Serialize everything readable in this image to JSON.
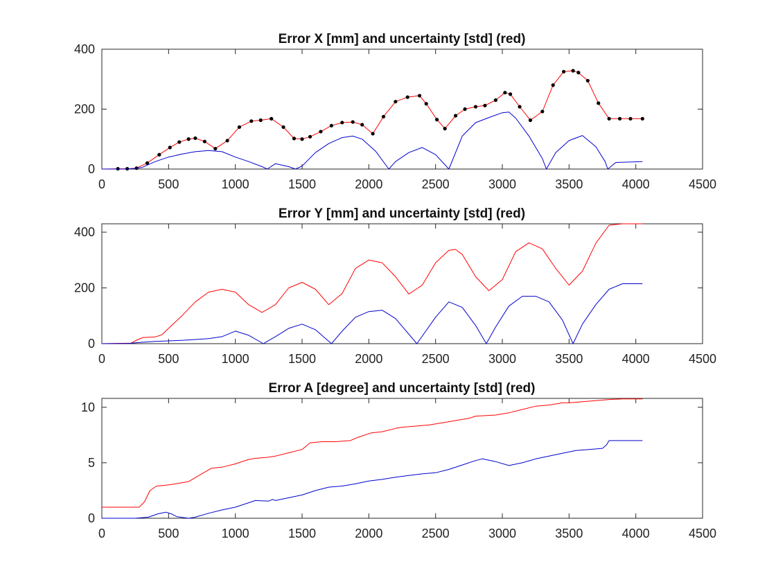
{
  "chart_data": [
    {
      "type": "line",
      "title": "Error X [mm] and uncertainty [std] (red)",
      "xlabel": "",
      "ylabel": "",
      "xlim": [
        0,
        4500
      ],
      "ylim": [
        0,
        400
      ],
      "xticks": [
        0,
        500,
        1000,
        1500,
        2000,
        2500,
        3000,
        3500,
        4000,
        4500
      ],
      "yticks": [
        0,
        200,
        400
      ],
      "grid": false,
      "legend": "none",
      "series": [
        {
          "color": "#ff0000",
          "marker": "dot",
          "marker_color": "#000000",
          "x": [
            0,
            120,
            190,
            260,
            340,
            430,
            510,
            580,
            650,
            700,
            770,
            850,
            940,
            1030,
            1120,
            1190,
            1270,
            1360,
            1440,
            1500,
            1560,
            1640,
            1720,
            1800,
            1880,
            1950,
            2030,
            2110,
            2200,
            2290,
            2380,
            2430,
            2510,
            2570,
            2650,
            2720,
            2800,
            2870,
            2950,
            3020,
            3060,
            3130,
            3210,
            3300,
            3380,
            3460,
            3530,
            3570,
            3640,
            3720,
            3800,
            3880,
            3960,
            4050
          ],
          "y": [
            0,
            1,
            1,
            3,
            20,
            48,
            72,
            90,
            100,
            103,
            92,
            68,
            95,
            140,
            160,
            163,
            168,
            140,
            102,
            100,
            108,
            125,
            145,
            155,
            157,
            148,
            118,
            175,
            225,
            240,
            245,
            218,
            165,
            135,
            178,
            200,
            208,
            212,
            230,
            255,
            250,
            208,
            163,
            192,
            280,
            325,
            328,
            322,
            295,
            220,
            168,
            168,
            168,
            168
          ],
          "show_markers": true
        },
        {
          "color": "#0000cc",
          "x": [
            0,
            200,
            300,
            400,
            500,
            600,
            700,
            800,
            900,
            1000,
            1100,
            1200,
            1240,
            1300,
            1400,
            1450,
            1500,
            1600,
            1700,
            1800,
            1880,
            1950,
            2050,
            2150,
            2200,
            2300,
            2400,
            2500,
            2600,
            2700,
            2800,
            2900,
            3000,
            3050,
            3100,
            3200,
            3300,
            3330,
            3400,
            3500,
            3600,
            3700,
            3770,
            3790,
            3850,
            4050
          ],
          "y": [
            0,
            0,
            5,
            25,
            40,
            50,
            58,
            62,
            58,
            40,
            25,
            8,
            0,
            18,
            8,
            0,
            10,
            55,
            85,
            105,
            110,
            100,
            60,
            0,
            25,
            55,
            72,
            48,
            0,
            110,
            155,
            172,
            188,
            190,
            170,
            110,
            35,
            0,
            55,
            95,
            112,
            75,
            25,
            0,
            22,
            25
          ]
        }
      ]
    },
    {
      "type": "line",
      "title": "Error Y [mm] and uncertainty [std] (red)",
      "xlabel": "",
      "ylabel": "",
      "xlim": [
        0,
        4500
      ],
      "ylim": [
        0,
        430
      ],
      "xticks": [
        0,
        500,
        1000,
        1500,
        2000,
        2500,
        3000,
        3500,
        4000,
        4500
      ],
      "yticks": [
        0,
        200,
        400
      ],
      "grid": false,
      "legend": "none",
      "series": [
        {
          "color": "#ff0000",
          "x": [
            0,
            220,
            270,
            310,
            400,
            450,
            500,
            600,
            700,
            800,
            900,
            1000,
            1100,
            1200,
            1300,
            1400,
            1500,
            1600,
            1700,
            1800,
            1900,
            2000,
            2100,
            2200,
            2300,
            2400,
            2500,
            2600,
            2650,
            2700,
            2800,
            2900,
            3000,
            3100,
            3200,
            3300,
            3400,
            3500,
            3600,
            3700,
            3800,
            3900,
            4050
          ],
          "y": [
            0,
            2,
            15,
            22,
            24,
            32,
            55,
            100,
            150,
            185,
            195,
            185,
            140,
            112,
            140,
            200,
            220,
            195,
            140,
            180,
            270,
            300,
            290,
            240,
            178,
            210,
            290,
            335,
            338,
            320,
            240,
            190,
            230,
            330,
            362,
            340,
            270,
            210,
            260,
            360,
            425,
            430,
            430
          ],
          "show_markers": false
        },
        {
          "color": "#0000cc",
          "x": [
            0,
            200,
            300,
            400,
            500,
            600,
            700,
            800,
            900,
            1000,
            1100,
            1210,
            1300,
            1400,
            1500,
            1600,
            1720,
            1800,
            1900,
            2000,
            2100,
            2200,
            2360,
            2500,
            2600,
            2700,
            2800,
            2880,
            2950,
            3050,
            3150,
            3250,
            3350,
            3450,
            3530,
            3600,
            3700,
            3800,
            3900,
            4050
          ],
          "y": [
            0,
            1,
            5,
            8,
            10,
            12,
            15,
            18,
            25,
            45,
            30,
            0,
            25,
            55,
            70,
            50,
            0,
            45,
            95,
            115,
            120,
            90,
            0,
            95,
            150,
            130,
            65,
            0,
            60,
            135,
            170,
            170,
            150,
            85,
            0,
            70,
            140,
            195,
            215,
            215
          ],
          "show_markers": false
        }
      ]
    },
    {
      "type": "line",
      "title": "Error A [degree] and uncertainty [std] (red)",
      "xlabel": "",
      "ylabel": "",
      "xlim": [
        0,
        4500
      ],
      "ylim": [
        0,
        10.8
      ],
      "xticks": [
        0,
        500,
        1000,
        1500,
        2000,
        2500,
        3000,
        3500,
        4000,
        4500
      ],
      "yticks": [
        0,
        5,
        10
      ],
      "grid": false,
      "legend": "none",
      "series": [
        {
          "color": "#ff0000",
          "x": [
            0,
            280,
            320,
            360,
            410,
            500,
            650,
            720,
            820,
            900,
            1000,
            1100,
            1150,
            1250,
            1300,
            1400,
            1500,
            1560,
            1650,
            1750,
            1860,
            1920,
            2020,
            2100,
            2200,
            2250,
            2350,
            2450,
            2550,
            2650,
            2750,
            2800,
            2950,
            3000,
            3050,
            3150,
            3250,
            3350,
            3450,
            3500,
            3600,
            3700,
            3800,
            3900,
            4050
          ],
          "y": [
            1,
            1,
            1.5,
            2.5,
            2.9,
            3.0,
            3.3,
            3.8,
            4.5,
            4.6,
            4.9,
            5.3,
            5.4,
            5.5,
            5.6,
            5.9,
            6.2,
            6.8,
            6.9,
            6.9,
            7.0,
            7.3,
            7.7,
            7.8,
            8.1,
            8.2,
            8.3,
            8.4,
            8.6,
            8.8,
            9.0,
            9.2,
            9.3,
            9.4,
            9.5,
            9.8,
            10.1,
            10.2,
            10.4,
            10.4,
            10.5,
            10.6,
            10.7,
            10.75,
            10.75
          ],
          "show_markers": false
        },
        {
          "color": "#0000cc",
          "x": [
            0,
            250,
            350,
            420,
            480,
            520,
            560,
            620,
            650,
            700,
            800,
            900,
            1000,
            1100,
            1150,
            1250,
            1280,
            1300,
            1400,
            1500,
            1600,
            1700,
            1800,
            1900,
            2000,
            2100,
            2200,
            2300,
            2400,
            2500,
            2600,
            2700,
            2800,
            2850,
            2950,
            3050,
            3150,
            3250,
            3350,
            3450,
            3550,
            3650,
            3750,
            3780,
            3800,
            4050
          ],
          "y": [
            0,
            0,
            0.1,
            0.4,
            0.55,
            0.4,
            0.15,
            0.05,
            0,
            0.1,
            0.45,
            0.75,
            1.0,
            1.4,
            1.6,
            1.55,
            1.7,
            1.6,
            1.85,
            2.1,
            2.5,
            2.8,
            2.9,
            3.1,
            3.35,
            3.5,
            3.7,
            3.85,
            4.0,
            4.1,
            4.4,
            4.8,
            5.2,
            5.35,
            5.1,
            4.75,
            5.0,
            5.35,
            5.6,
            5.85,
            6.1,
            6.2,
            6.3,
            6.6,
            7.0,
            7.0
          ],
          "show_markers": false
        }
      ]
    }
  ]
}
